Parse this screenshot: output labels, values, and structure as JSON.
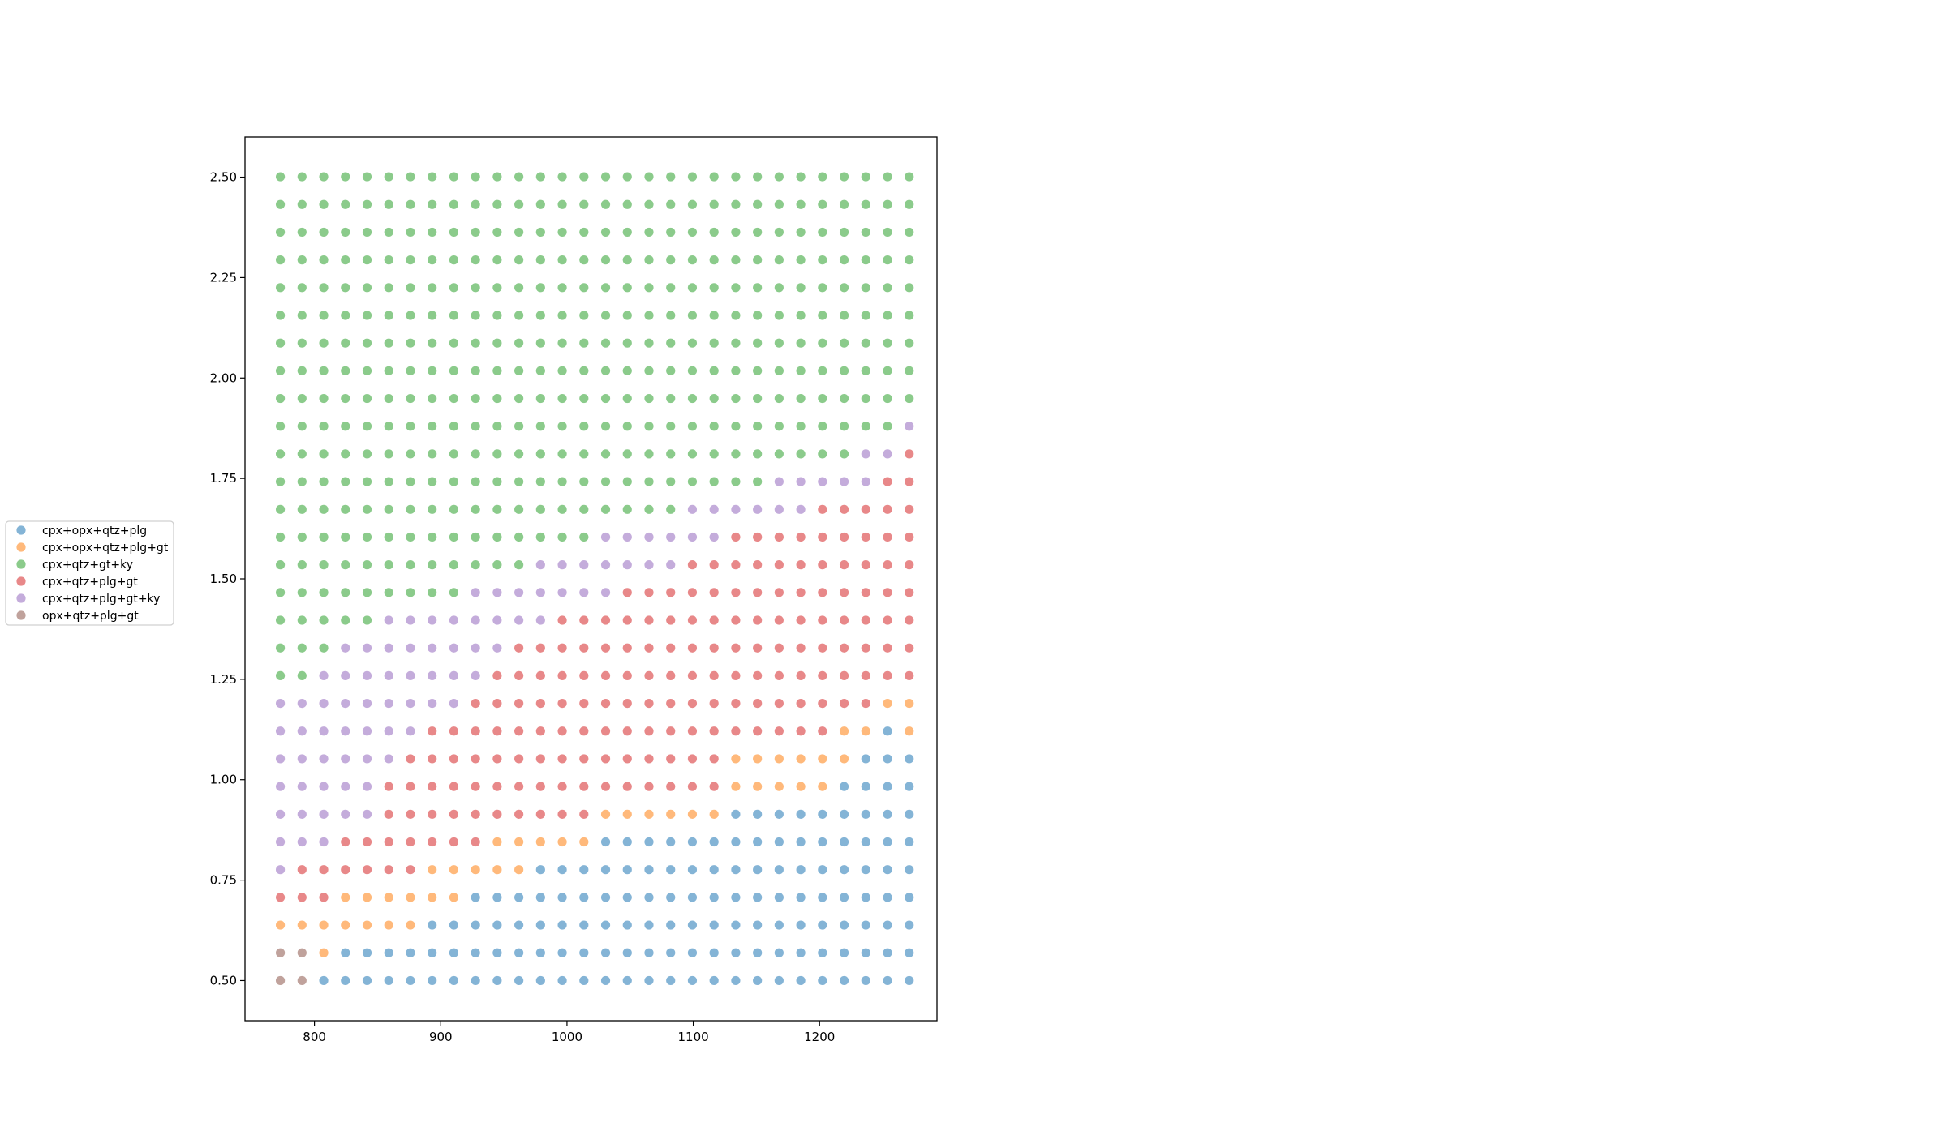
{
  "chart_data": {
    "type": "scatter",
    "title": "",
    "xlabel": "",
    "ylabel": "",
    "xlim": [
      745,
      1293
    ],
    "ylim": [
      0.4,
      2.6
    ],
    "x_ticks": [
      800,
      900,
      1000,
      1100,
      1200
    ],
    "y_ticks": [
      0.5,
      0.75,
      1.0,
      1.25,
      1.5,
      1.75,
      2.0,
      2.25,
      2.5
    ],
    "y_tick_labels": [
      "0.50",
      "0.75",
      "1.00",
      "1.25",
      "1.50",
      "1.75",
      "2.00",
      "2.25",
      "2.50"
    ],
    "grid": false,
    "legend_position": "left, outside plot area",
    "x_grid": {
      "start": 773,
      "step": 17.1724,
      "count": 30
    },
    "y_grid": {
      "start": 0.5,
      "step": 0.069,
      "count": 30
    },
    "series": [
      {
        "name": "cpx+opx+qtz+plg",
        "color": "#1f77b4"
      },
      {
        "name": "cpx+opx+qtz+plg+gt",
        "color": "#ff7f0e"
      },
      {
        "name": "cpx+qtz+gt+ky",
        "color": "#2ca02c"
      },
      {
        "name": "cpx+qtz+plg+gt",
        "color": "#d62728"
      },
      {
        "name": "cpx+qtz+plg+gt+ky",
        "color": "#9467bd"
      },
      {
        "name": "opx+qtz+plg+gt",
        "color": "#8c564b"
      }
    ],
    "phase_field_rows": [
      "550000000000000000000000000000",
      "551000000000000000000000000000",
      "111111100000000000000000000000",
      "333111111000000000000000000000",
      "433333311111000000000000000000",
      "444333333311111000000000000000",
      "444443333333333111111000000000",
      "444443333333333333333111110000",
      "444444333333333333333111111000",
      "444444433333333333333333331101",
      "444444444333333333333333333311",
      "224444444433333333333333333333",
      "222444444443333333333333333333",
      "222224444444433333333333333333",
      "222222222444444433333333333333",
      "222222222222444444433333333333",
      "222222222222222444444333333333",
      "222222222222222222244444433333",
      "222222222222222222222224444433",
      "222222222222222222222222222443",
      "222222222222222222222222222224",
      "222222222222222222222222222222",
      "222222222222222222222222222222",
      "222222222222222222222222222222",
      "222222222222222222222222222222",
      "222222222222222222222222222222",
      "222222222222222222222222222222",
      "222222222222222222222222222222",
      "222222222222222222222222222222",
      "222222222222222222222222222222"
    ]
  }
}
